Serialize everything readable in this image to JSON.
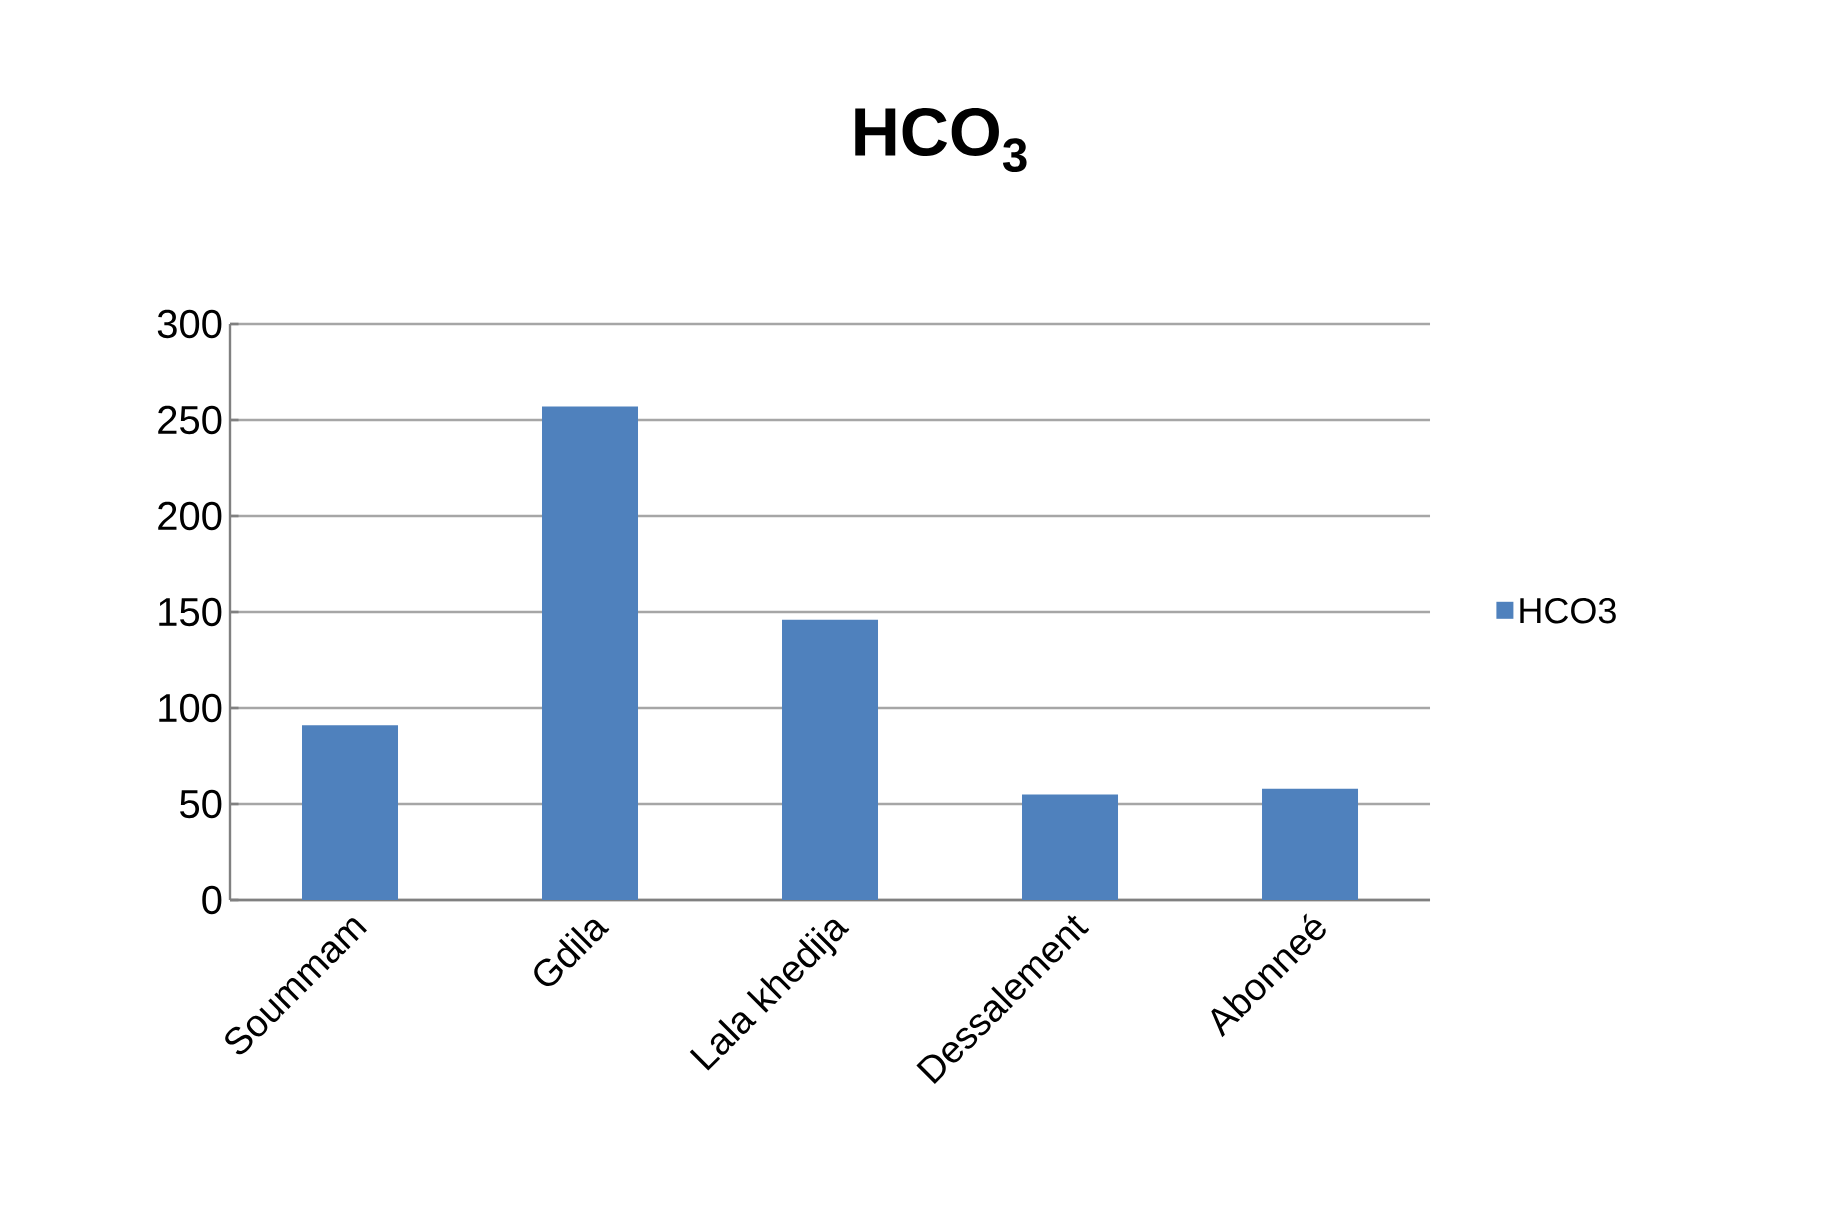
{
  "chart_data": {
    "type": "bar",
    "title": "HCO$_{3}$",
    "categories": [
      "Soummam",
      "Gdila",
      "Lala khedija",
      "Dessalement",
      "Abonneé"
    ],
    "series": [
      {
        "name": "HCO3",
        "color": "#4f81bd",
        "values": [
          91,
          257,
          146,
          55,
          58
        ]
      }
    ],
    "ylim": [
      0,
      300
    ],
    "yticks": [
      0,
      50,
      100,
      150,
      200,
      250,
      300
    ],
    "grid": "y",
    "legend": "right"
  }
}
